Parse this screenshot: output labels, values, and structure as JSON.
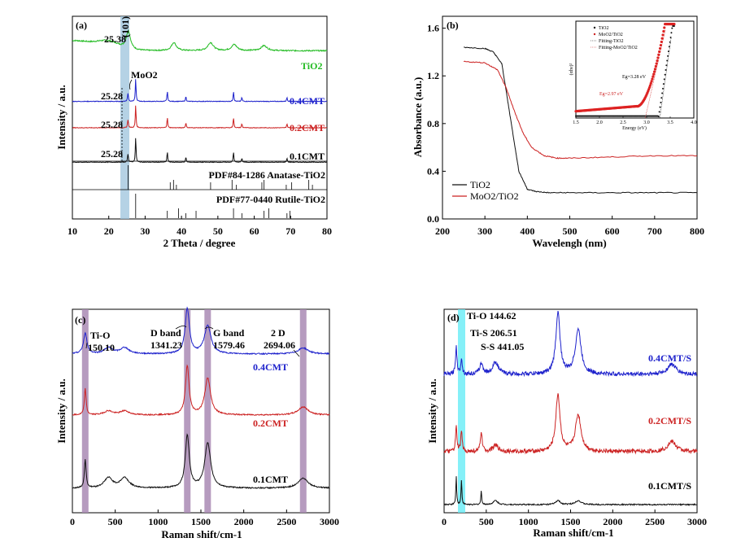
{
  "chart_data": [
    {
      "id": "a",
      "type": "line",
      "panel_label": "(a)",
      "xlabel": "2 Theta / degree",
      "ylabel": "Intensity / a.u.",
      "xlim": [
        10,
        80
      ],
      "xticks": [
        10,
        20,
        30,
        40,
        50,
        60,
        70,
        80
      ],
      "series": [
        {
          "name": "TiO2",
          "color": "#22bb22",
          "offset": 0.83,
          "peaks": [
            [
              25.38,
              0.09,
              0.7
            ],
            [
              37.9,
              0.04,
              0.8
            ],
            [
              48.0,
              0.04,
              0.9
            ],
            [
              54.5,
              0.03,
              0.9
            ],
            [
              62.7,
              0.025,
              1.0
            ]
          ]
        },
        {
          "name": "0.4CMT",
          "color": "#1e22cc",
          "offset": 0.58,
          "peaks": [
            [
              25.28,
              0.04,
              0.15
            ],
            [
              27.4,
              0.11,
              0.12
            ],
            [
              36.1,
              0.05,
              0.12
            ],
            [
              41.2,
              0.025,
              0.12
            ],
            [
              54.3,
              0.05,
              0.12
            ],
            [
              56.6,
              0.02,
              0.12
            ],
            [
              69.0,
              0.02,
              0.12
            ]
          ]
        },
        {
          "name": "0.2CMT",
          "color": "#cc2222",
          "offset": 0.45,
          "peaks": [
            [
              25.28,
              0.04,
              0.15
            ],
            [
              27.4,
              0.11,
              0.12
            ],
            [
              36.1,
              0.05,
              0.12
            ],
            [
              41.2,
              0.025,
              0.12
            ],
            [
              54.3,
              0.05,
              0.12
            ],
            [
              56.6,
              0.02,
              0.12
            ],
            [
              69.0,
              0.02,
              0.12
            ]
          ]
        },
        {
          "name": "0.1CMT",
          "color": "#111111",
          "offset": 0.28,
          "peaks": [
            [
              25.28,
              0.04,
              0.15
            ],
            [
              27.4,
              0.12,
              0.12
            ],
            [
              36.1,
              0.05,
              0.12
            ],
            [
              41.2,
              0.025,
              0.12
            ],
            [
              54.3,
              0.05,
              0.12
            ],
            [
              56.6,
              0.02,
              0.12
            ],
            [
              69.0,
              0.02,
              0.12
            ]
          ]
        }
      ],
      "reference_patterns": [
        {
          "label": "PDF#84-1286 Anatase-TiO2",
          "lines": [
            25.3,
            36.9,
            37.8,
            38.6,
            48.0,
            53.9,
            55.1,
            62.1,
            62.7,
            68.8,
            70.3,
            75.0,
            76.0
          ]
        },
        {
          "label": "PDF#77-0440 Rutile-TiO2",
          "lines": [
            27.4,
            36.1,
            39.2,
            41.2,
            44.0,
            54.3,
            56.6,
            62.7,
            64.0,
            69.0,
            69.8
          ]
        }
      ],
      "annotations": [
        "25.38",
        "(101)",
        "MoO2",
        "25.28",
        "25.28",
        "25.28"
      ]
    },
    {
      "id": "b",
      "type": "line",
      "panel_label": "(b)",
      "xlabel": "Wavelengh (nm)",
      "ylabel": "Absorbance (a.u.)",
      "xlim": [
        200,
        800
      ],
      "ylim": [
        0.0,
        1.7
      ],
      "xticks": [
        200,
        300,
        400,
        500,
        600,
        700,
        800
      ],
      "yticks": [
        0.0,
        0.4,
        0.8,
        1.2,
        1.6
      ],
      "series": [
        {
          "name": "TiO2",
          "color": "#111111",
          "x": [
            250,
            300,
            320,
            340,
            360,
            380,
            400,
            420,
            450,
            500,
            600,
            700,
            800
          ],
          "y": [
            1.44,
            1.43,
            1.4,
            1.3,
            0.85,
            0.4,
            0.25,
            0.23,
            0.22,
            0.22,
            0.22,
            0.22,
            0.22
          ]
        },
        {
          "name": "MoO2/TiO2",
          "color": "#cc2222",
          "x": [
            250,
            300,
            330,
            350,
            370,
            390,
            410,
            440,
            470,
            500,
            600,
            700,
            800
          ],
          "y": [
            1.32,
            1.31,
            1.25,
            1.1,
            0.9,
            0.72,
            0.6,
            0.53,
            0.51,
            0.51,
            0.52,
            0.53,
            0.53
          ]
        }
      ],
      "legend_position": "bottom-left",
      "inset": {
        "xlabel": "Energy (eV)",
        "ylabel": "(αhν)²",
        "xlim": [
          1.5,
          4.0
        ],
        "xticks": [
          "1.5",
          "2.0",
          "2.5",
          "3.0",
          "3.5",
          "4.0"
        ],
        "legend": [
          "TiO2",
          "MoO2/TiO2",
          "Fitting-TiO2",
          "Fitting-MoO2/TiO2"
        ],
        "annotations": [
          "Eg=3.28 eV",
          "Eg=2.97 eV"
        ]
      }
    },
    {
      "id": "c",
      "type": "line",
      "panel_label": "(c)",
      "xlabel": "Raman shift/cm-1",
      "ylabel": "Intensity / a.u.",
      "xlim": [
        0,
        3000
      ],
      "xticks": [
        0,
        500,
        1000,
        1500,
        2000,
        2500,
        3000
      ],
      "highlight_bands": [
        150,
        1341,
        1579,
        2694
      ],
      "series": [
        {
          "name": "0.4CMT",
          "color": "#1e22cc",
          "offset": 0.78,
          "peaks": [
            [
              150,
              0.1,
              25
            ],
            [
              420,
              0.03,
              60
            ],
            [
              610,
              0.03,
              60
            ],
            [
              1341,
              0.22,
              30
            ],
            [
              1579,
              0.14,
              45
            ],
            [
              2694,
              0.03,
              70
            ]
          ]
        },
        {
          "name": "0.2CMT",
          "color": "#cc2222",
          "offset": 0.48,
          "peaks": [
            [
              150,
              0.13,
              12
            ],
            [
              420,
              0.02,
              60
            ],
            [
              610,
              0.02,
              60
            ],
            [
              1341,
              0.24,
              25
            ],
            [
              1579,
              0.18,
              40
            ],
            [
              2694,
              0.04,
              70
            ]
          ]
        },
        {
          "name": "0.1CMT",
          "color": "#111111",
          "offset": 0.12,
          "peaks": [
            [
              150,
              0.14,
              12
            ],
            [
              420,
              0.05,
              60
            ],
            [
              610,
              0.05,
              60
            ],
            [
              1341,
              0.26,
              28
            ],
            [
              1579,
              0.22,
              42
            ],
            [
              2694,
              0.05,
              70
            ]
          ]
        }
      ],
      "annotations": [
        "Ti-O",
        "150.10",
        "D band",
        "1341.23",
        "G band",
        "1579.46",
        "2 D",
        "2694.06"
      ]
    },
    {
      "id": "d",
      "type": "line",
      "panel_label": "(d)",
      "xlabel": "Raman shift/cm-1",
      "ylabel": "Intensity / a.u.",
      "xlim": [
        0,
        3000
      ],
      "xticks": [
        0,
        500,
        1000,
        1500,
        2000,
        2500,
        3000
      ],
      "highlight_band": [
        144,
        300
      ],
      "series": [
        {
          "name": "0.4CMT/S",
          "color": "#1e22cc",
          "offset": 0.68,
          "peaks": [
            [
              144,
              0.14,
              10
            ],
            [
              206,
              0.08,
              10
            ],
            [
              441,
              0.05,
              25
            ],
            [
              610,
              0.06,
              40
            ],
            [
              1350,
              0.3,
              30
            ],
            [
              1590,
              0.22,
              40
            ],
            [
              2700,
              0.05,
              60
            ]
          ]
        },
        {
          "name": "0.2CMT/S",
          "color": "#cc2222",
          "offset": 0.3,
          "peaks": [
            [
              144,
              0.12,
              10
            ],
            [
              206,
              0.1,
              10
            ],
            [
              441,
              0.1,
              12
            ],
            [
              610,
              0.03,
              40
            ],
            [
              1350,
              0.28,
              30
            ],
            [
              1590,
              0.18,
              40
            ],
            [
              2700,
              0.05,
              60
            ]
          ]
        },
        {
          "name": "0.1CMT/S",
          "color": "#111111",
          "offset": 0.04,
          "peaks": [
            [
              144,
              0.14,
              6
            ],
            [
              206,
              0.12,
              6
            ],
            [
              441,
              0.07,
              6
            ],
            [
              610,
              0.02,
              30
            ],
            [
              1350,
              0.02,
              30
            ],
            [
              1590,
              0.02,
              40
            ]
          ]
        }
      ],
      "annotations": [
        "Ti-O 144.62",
        "Ti-S 206.51",
        "S-S 441.05"
      ]
    }
  ]
}
